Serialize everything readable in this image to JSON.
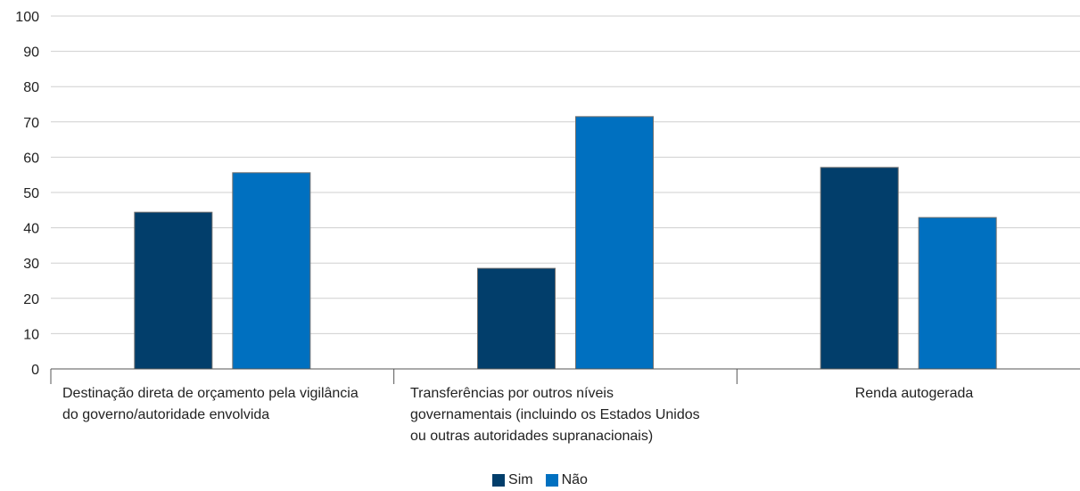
{
  "chart_data": {
    "type": "bar",
    "categories": [
      "Destinação direta de orçamento pela vigilância do governo/autoridade envolvida",
      "Transferências por outros níveis governamentais (incluindo os Estados Unidos ou outras autoridades supranacionais)",
      "Renda autogerada"
    ],
    "category_lines": [
      [
        "Destinação direta de orçamento pela vigilância",
        "do governo/autoridade envolvida"
      ],
      [
        "Transferências por outros níveis",
        "governamentais (incluindo os Estados Unidos",
        "ou outras autoridades supranacionais)"
      ],
      [
        "Renda autogerada"
      ]
    ],
    "series": [
      {
        "name": "Sim",
        "values": [
          44.4,
          28.5,
          57.1
        ],
        "color": "#023e6b"
      },
      {
        "name": "Não",
        "values": [
          55.6,
          71.5,
          42.9
        ],
        "color": "#0070c0"
      }
    ],
    "ylim": [
      0,
      100
    ],
    "yticks": [
      "0",
      "10",
      "20",
      "30",
      "40",
      "50",
      "60",
      "70",
      "80",
      "90",
      "100"
    ],
    "grid": true,
    "legend_position": "bottom-center"
  }
}
